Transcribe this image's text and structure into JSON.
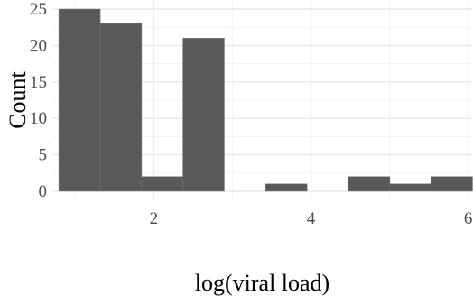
{
  "chart_data": {
    "type": "histogram",
    "xlabel": "log(viral load)",
    "ylabel": "Count",
    "xlim": [
      0.71,
      6.05
    ],
    "ylim": [
      -1.25,
      26.25
    ],
    "x_ticks": [
      2,
      4,
      6
    ],
    "x_minor_ticks": [
      1,
      3,
      5
    ],
    "y_ticks": [
      0,
      5,
      10,
      15,
      20,
      25
    ],
    "y_minor_ticks": [
      2.5,
      7.5,
      12.5,
      17.5,
      22.5
    ],
    "grid": true,
    "bins": [
      {
        "x0": 0.792,
        "x1": 1.319,
        "count": 25
      },
      {
        "x0": 1.319,
        "x1": 1.845,
        "count": 23
      },
      {
        "x0": 1.845,
        "x1": 2.371,
        "count": 2
      },
      {
        "x0": 2.371,
        "x1": 2.897,
        "count": 21
      },
      {
        "x0": 2.897,
        "x1": 3.424,
        "count": 0
      },
      {
        "x0": 3.424,
        "x1": 3.95,
        "count": 1
      },
      {
        "x0": 3.95,
        "x1": 4.476,
        "count": 0
      },
      {
        "x0": 4.476,
        "x1": 5.003,
        "count": 2
      },
      {
        "x0": 5.003,
        "x1": 5.529,
        "count": 1
      },
      {
        "x0": 5.529,
        "x1": 6.055,
        "count": 2
      }
    ],
    "colors": {
      "bar": "#595959",
      "grid": "#ebebeb"
    }
  }
}
